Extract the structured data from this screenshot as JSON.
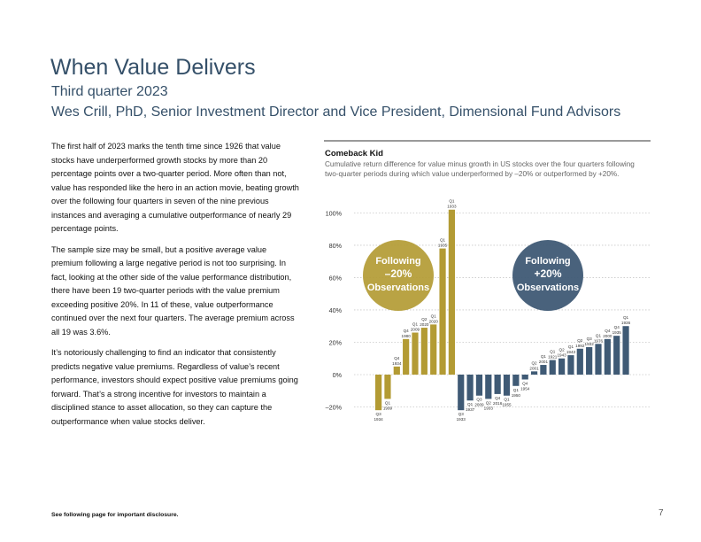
{
  "page": {
    "title": "When Value Delivers",
    "subtitle": "Third quarter 2023",
    "authors": "Wes Crill, PhD, Senior Investment Director and Vice President, Dimensional Fund Advisors",
    "paragraphs": [
      "The first half of 2023 marks the tenth time since 1926 that value stocks have underperformed growth stocks by more than 20 percentage points over a two-quarter period. More often than not, value has responded like the hero in an action movie, beating growth over the following four quarters in seven of the nine previous instances and averaging a cumulative outperformance of nearly 29 percentage points.",
      "The sample size may be small, but a positive average value premium following a large negative period is not too surprising. In fact, looking at the other side of the value performance distribution, there have been 19 two-quarter periods with the value premium exceeding positive 20%. In 11 of these, value outperformance continued over the next four quarters. The average premium across all 19 was 3.6%.",
      "It’s notoriously challenging to find an indicator that consistently predicts negative value premiums. Regardless of value’s recent performance, investors should expect positive value premiums going forward. That’s a strong incentive for investors to maintain a disciplined stance to asset allocation, so they can capture the outperformance when value stocks deliver."
    ],
    "footer": "See following page for important disclosure.",
    "page_number": "7"
  },
  "chart_data": {
    "type": "bar",
    "title": "Comeback Kid",
    "subtitle": "Cumulative return difference for value minus growth in US stocks over the four quarters following two-quarter periods during which value underperformed by –20% or outperformed by +20%.",
    "ylim": [
      -20,
      100
    ],
    "yticks": [
      "100%",
      "80%",
      "60%",
      "40%",
      "20%",
      "0%",
      "–20%"
    ],
    "grid": true,
    "colors": {
      "minus20": "#b39b34",
      "plus20": "#3f5a75",
      "grid": "#c8c8c8",
      "tick": "#333333"
    },
    "series": [
      {
        "name": "Following –20% Observations",
        "bubble_lines": [
          "Following",
          "–20%",
          "Observations"
        ],
        "categories": [
          [
            "Q3",
            "1934"
          ],
          [
            "Q1",
            "1999"
          ],
          [
            "Q4",
            "1934"
          ],
          [
            "Q4",
            "1980"
          ],
          [
            "Q1",
            "2009"
          ],
          [
            "Q2",
            "2020"
          ],
          [
            "Q1",
            "2020"
          ],
          [
            "Q1",
            "1935"
          ],
          [
            "Q1",
            "1933"
          ]
        ],
        "values": [
          -22,
          -15,
          5,
          22,
          26,
          29,
          31,
          78,
          102
        ]
      },
      {
        "name": "Following +20% Observations",
        "bubble_lines": [
          "Following",
          "+20%",
          "Observations"
        ],
        "categories": [
          [
            "Q3",
            "1933"
          ],
          [
            "Q1",
            "1937"
          ],
          [
            "Q3",
            "2009"
          ],
          [
            "Q2",
            "1933"
          ],
          [
            "Q4",
            "2016"
          ],
          [
            "Q1",
            "1955"
          ],
          [
            "Q1",
            "1950"
          ],
          [
            "Q4",
            "1954"
          ],
          [
            "Q2",
            "2001"
          ],
          [
            "Q1",
            "2001"
          ],
          [
            "Q1",
            "1921"
          ],
          [
            "Q2",
            "1943"
          ],
          [
            "Q1",
            "1943"
          ],
          [
            "Q2",
            "1992"
          ],
          [
            "Q3",
            "1932"
          ],
          [
            "Q1",
            "1976"
          ],
          [
            "Q4",
            "2000"
          ],
          [
            "Q4",
            "1935"
          ],
          [
            "Q1",
            "1936"
          ]
        ],
        "values": [
          -22,
          -16,
          -13,
          -15,
          -12,
          -13,
          -7,
          -3,
          2,
          6,
          9,
          10,
          12,
          16,
          17,
          19,
          22,
          24,
          30
        ]
      }
    ]
  }
}
